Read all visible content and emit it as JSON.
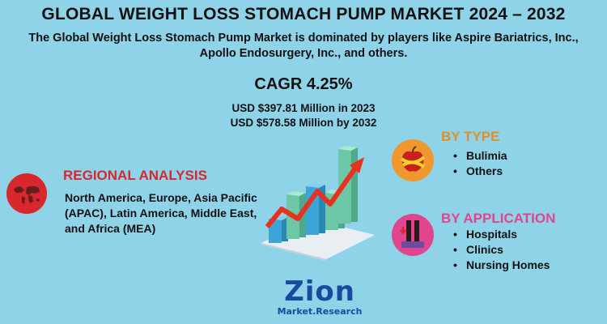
{
  "header": {
    "title": "GLOBAL WEIGHT LOSS STOMACH PUMP MARKET 2024 – 2032",
    "subtitle": "The Global Weight Loss Stomach Pump Market is dominated by players like Aspire Bariatrics, Inc., Apollo Endosurgery, Inc., and others."
  },
  "stats": {
    "cagr": "CAGR 4.25%",
    "value_2023": "USD $397.81 Million in 2023",
    "value_2032": "USD $578.58 Million by 2032"
  },
  "regional": {
    "title": "REGIONAL ANALYSIS",
    "text": "North America, Europe, Asia Pacific (APAC), Latin America, Middle East, and Africa (MEA)",
    "icon": "world-map-icon",
    "color": "#d9272e"
  },
  "by_type": {
    "title": "BY TYPE",
    "items": [
      "Bulimia",
      "Others"
    ],
    "icon": "apple-measuring-tape-icon",
    "color": "#f0982d"
  },
  "by_application": {
    "title": "BY APPLICATION",
    "items": [
      "Hospitals",
      "Clinics",
      "Nursing Homes"
    ],
    "icon": "weighing-scale-icon",
    "color": "#e0458f"
  },
  "logo": {
    "word": "Zion",
    "sub": "Market.Research"
  }
}
